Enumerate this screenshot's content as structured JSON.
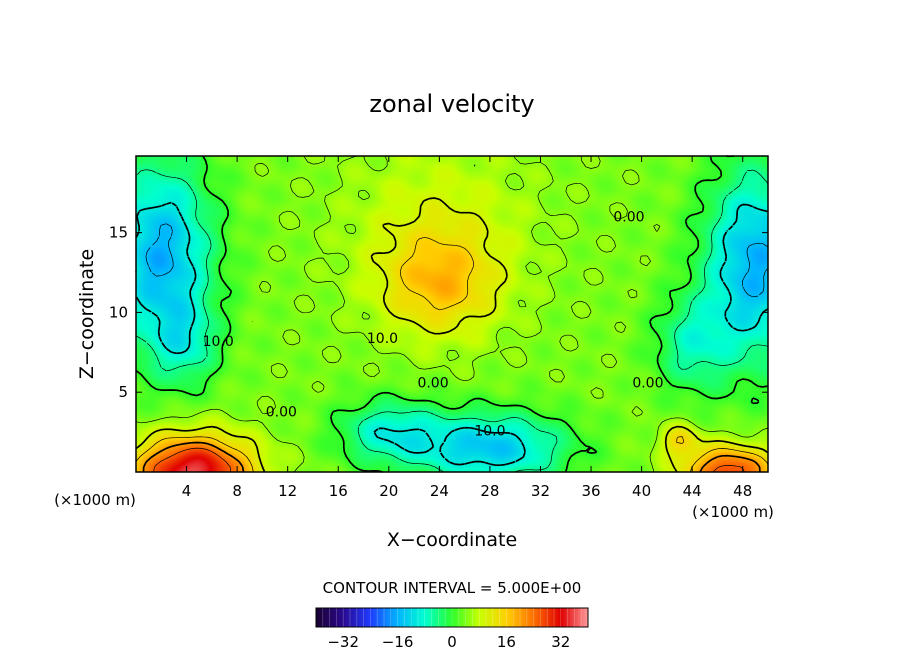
{
  "chart_data": {
    "type": "heatmap",
    "title": "zonal velocity",
    "xlabel": "X−coordinate",
    "ylabel": "Z−coordinate",
    "x_unit_left": "(×1000 m)",
    "x_unit_right": "(×1000 m)",
    "xlim": [
      0,
      50
    ],
    "ylim": [
      0,
      19.8
    ],
    "x_ticks": [
      4,
      8,
      12,
      16,
      20,
      24,
      28,
      32,
      36,
      40,
      44,
      48
    ],
    "y_ticks": [
      5,
      10,
      15
    ],
    "contour_interval_text": "CONTOUR INTERVAL = 5.000E+00",
    "colorbar": {
      "range": [
        -40,
        40
      ],
      "ticks": [
        -32,
        -16,
        0,
        16,
        32
      ],
      "colors": [
        "#1a0030",
        "#2a0a90",
        "#1f3cff",
        "#00b4ff",
        "#00ffd0",
        "#2cff2c",
        "#c8ff00",
        "#ffd000",
        "#ff7000",
        "#e00000",
        "#ff9a9a"
      ]
    },
    "field": {
      "background_value": 4,
      "features": [
        {
          "x": 24,
          "z": 11.8,
          "sx": 4.5,
          "sz": 3.2,
          "amp": 12
        },
        {
          "x": 24,
          "z": 15.5,
          "sx": 7,
          "sz": 5,
          "amp": 5
        },
        {
          "x": 2,
          "z": 13.5,
          "sx": 4,
          "sz": 6,
          "amp": -20
        },
        {
          "x": 4,
          "z": 8,
          "sx": 2.5,
          "sz": 2.5,
          "amp": -8
        },
        {
          "x": 49,
          "z": 13,
          "sx": 4,
          "sz": 6,
          "amp": -20
        },
        {
          "x": 44,
          "z": 8,
          "sx": 3,
          "sz": 3,
          "amp": -10
        },
        {
          "x": 28,
          "z": 1.5,
          "sx": 6,
          "sz": 2.2,
          "amp": -18
        },
        {
          "x": 20,
          "z": 2.5,
          "sx": 4,
          "sz": 2,
          "amp": -12
        },
        {
          "x": 4.5,
          "z": 0,
          "sx": 4.5,
          "sz": 2.2,
          "amp": 32
        },
        {
          "x": 47,
          "z": 0,
          "sx": 3.5,
          "sz": 1.6,
          "amp": 24
        },
        {
          "x": 43,
          "z": 2,
          "sx": 1.5,
          "sz": 1,
          "amp": 10
        }
      ]
    },
    "contour_labels": [
      {
        "text": "10.0",
        "x": 6.5,
        "z": 8.2
      },
      {
        "text": "10.0",
        "x": 19.5,
        "z": 8.4
      },
      {
        "text": "0.00",
        "x": 11.5,
        "z": 3.8
      },
      {
        "text": "0.00",
        "x": 23.5,
        "z": 5.6
      },
      {
        "text": "0.00",
        "x": 39,
        "z": 16
      },
      {
        "text": "0.00",
        "x": 40.5,
        "z": 5.6
      },
      {
        "text": "10.0",
        "x": 28,
        "z": 2.6
      }
    ]
  }
}
